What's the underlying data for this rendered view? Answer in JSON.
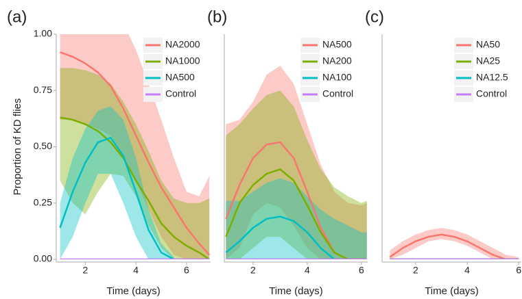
{
  "chart_data": [
    {
      "type": "line",
      "panel_label": "(a)",
      "xlabel": "Time (days)",
      "ylabel": "Proportion of KD flies",
      "legend": "top-right",
      "x": [
        1,
        1.5,
        2,
        2.5,
        3,
        3.5,
        4,
        4.5,
        5,
        5.5,
        6,
        6.5,
        6.9
      ],
      "xlim": [
        0.85,
        6.95
      ],
      "xticks": [
        2,
        4,
        6
      ],
      "ylim": [
        0,
        1
      ],
      "yticks": [
        {
          "value": 0,
          "label": "0.00"
        },
        {
          "value": 0.25,
          "label": "0.25"
        },
        {
          "value": 0.5,
          "label": "0.50"
        },
        {
          "value": 0.75,
          "label": "0.75"
        },
        {
          "value": 1,
          "label": "1.00"
        }
      ],
      "series": [
        {
          "name": "NA2000",
          "color": "#f8766d",
          "values": [
            0.92,
            0.9,
            0.87,
            0.83,
            0.77,
            0.67,
            0.55,
            0.43,
            0.32,
            0.23,
            0.14,
            0.07,
            0.02
          ],
          "upper": [
            1.05,
            1.05,
            1.05,
            1.05,
            1.05,
            1.05,
            0.93,
            0.78,
            0.62,
            0.45,
            0.3,
            0.28,
            0.37
          ],
          "lower": [
            0.62,
            0.62,
            0.6,
            0.58,
            0.55,
            0.45,
            0.35,
            0.22,
            0.1,
            0.02,
            0,
            0,
            0
          ]
        },
        {
          "name": "NA1000",
          "color": "#7cae00",
          "values": [
            0.63,
            0.62,
            0.6,
            0.57,
            0.52,
            0.45,
            0.35,
            0.26,
            0.16,
            0.1,
            0.06,
            0.03,
            0
          ],
          "upper": [
            0.85,
            0.85,
            0.84,
            0.82,
            0.78,
            0.7,
            0.6,
            0.48,
            0.35,
            0.27,
            0.25,
            0.25,
            0.27
          ],
          "lower": [
            0.35,
            0.25,
            0.2,
            0.3,
            0.38,
            0.37,
            0.28,
            0.15,
            0.05,
            0,
            0,
            0,
            0
          ]
        },
        {
          "name": "NA500",
          "color": "#00bfc4",
          "values": [
            0.14,
            0.3,
            0.43,
            0.52,
            0.54,
            0.46,
            0.3,
            0.13,
            0.03,
            0,
            null,
            null,
            null
          ],
          "upper": [
            0.25,
            0.45,
            0.58,
            0.66,
            0.68,
            0.62,
            0.45,
            0.22,
            0.07,
            0.01,
            null,
            null,
            null
          ],
          "lower": [
            0,
            0.1,
            0.25,
            0.38,
            0.38,
            0.25,
            0.1,
            0,
            0,
            0,
            null,
            null,
            null
          ]
        },
        {
          "name": "Control",
          "color": "#c77cff",
          "values": [
            0,
            0,
            0,
            0,
            0,
            0,
            0,
            0,
            0,
            0,
            0,
            0,
            0
          ]
        }
      ]
    },
    {
      "type": "line",
      "panel_label": "(b)",
      "xlabel": "Time (days)",
      "legend": "top-right",
      "x": [
        1,
        1.5,
        2,
        2.5,
        3,
        3.5,
        4,
        4.5,
        5,
        5.5,
        6,
        6.2
      ],
      "xlim": [
        0.94,
        6.23
      ],
      "xticks": [
        2,
        4,
        6
      ],
      "ylim": [
        0,
        1
      ],
      "series": [
        {
          "name": "NA500",
          "color": "#f8766d",
          "values": [
            0.18,
            0.33,
            0.45,
            0.51,
            0.52,
            0.45,
            0.3,
            0.14,
            0.03,
            0,
            0,
            0
          ],
          "upper": [
            0.6,
            0.62,
            0.7,
            0.82,
            0.86,
            0.78,
            0.6,
            0.42,
            0.3,
            0.25,
            0.24,
            0.25
          ],
          "lower": [
            0,
            0.05,
            0.2,
            0.25,
            0.23,
            0.15,
            0.05,
            0,
            0,
            0,
            0,
            0
          ]
        },
        {
          "name": "NA200",
          "color": "#7cae00",
          "values": [
            0.1,
            0.25,
            0.33,
            0.38,
            0.4,
            0.35,
            0.24,
            0.12,
            0.03,
            0,
            0,
            0
          ],
          "upper": [
            0.55,
            0.6,
            0.67,
            0.73,
            0.75,
            0.68,
            0.53,
            0.4,
            0.32,
            0.28,
            0.25,
            0.26
          ],
          "lower": [
            0,
            0,
            0.05,
            0.1,
            0.1,
            0.05,
            0,
            0,
            0,
            0,
            0,
            0
          ]
        },
        {
          "name": "NA100",
          "color": "#00bfc4",
          "values": [
            0.03,
            0.08,
            0.14,
            0.18,
            0.19,
            0.17,
            0.12,
            0.05,
            0,
            null,
            null,
            null
          ],
          "upper": [
            0.26,
            0.26,
            0.3,
            0.34,
            0.36,
            0.34,
            0.28,
            0.22,
            0.18,
            0.15,
            0.12,
            0.12
          ],
          "lower": [
            0,
            0,
            0,
            0,
            0,
            0,
            0,
            0,
            0,
            0,
            0,
            0
          ]
        },
        {
          "name": "Control",
          "color": "#c77cff",
          "values": [
            0,
            0,
            0,
            0,
            0,
            0,
            0,
            0,
            0,
            0,
            0,
            0
          ]
        }
      ]
    },
    {
      "type": "line",
      "panel_label": "(c)",
      "xlabel": "Time (days)",
      "legend": "top-right",
      "x": [
        1,
        1.5,
        2,
        2.5,
        3,
        3.5,
        4,
        4.5,
        5,
        5.5,
        6
      ],
      "xlim": [
        0.7,
        6.1
      ],
      "xticks": [
        2,
        4,
        6
      ],
      "ylim": [
        0,
        1
      ],
      "series": [
        {
          "name": "NA50",
          "color": "#f8766d",
          "values": [
            0.01,
            0.05,
            0.08,
            0.1,
            0.11,
            0.1,
            0.08,
            0.05,
            0.02,
            0,
            0
          ],
          "upper": [
            0.04,
            0.08,
            0.11,
            0.13,
            0.14,
            0.13,
            0.11,
            0.08,
            0.05,
            0.02,
            0.01
          ],
          "lower": [
            0,
            0.02,
            0.05,
            0.08,
            0.09,
            0.08,
            0.06,
            0.03,
            0,
            0,
            0
          ]
        },
        {
          "name": "NA25",
          "color": "#7cae00",
          "values": [
            0,
            0,
            0,
            0,
            0,
            0,
            0,
            0,
            0,
            0,
            0
          ]
        },
        {
          "name": "NA12.5",
          "color": "#00bfc4",
          "values": [
            0,
            0,
            0,
            0,
            0,
            0,
            0,
            0,
            0,
            0,
            0
          ]
        },
        {
          "name": "Control",
          "color": "#c77cff",
          "values": [
            0,
            0,
            0,
            0,
            0,
            0,
            0,
            0,
            0,
            0,
            0
          ]
        }
      ]
    }
  ]
}
